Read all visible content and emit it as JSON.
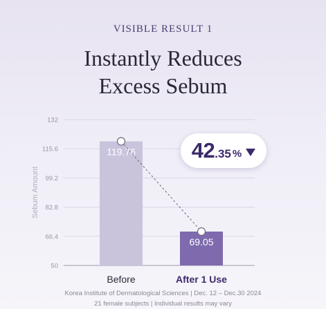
{
  "header": {
    "eyebrow": "VISIBLE RESULT 1",
    "title_line1": "Instantly Reduces",
    "title_line2": "Excess Sebum"
  },
  "badge": {
    "whole": "42",
    "decimal": ".35",
    "percent": "%",
    "direction": "down"
  },
  "chart_data": {
    "type": "bar",
    "categories": [
      "Before",
      "After 1 Use"
    ],
    "values": [
      119.76,
      69.05
    ],
    "value_labels": [
      "119.76",
      "69.05"
    ],
    "ylabel": "Sebum Amount",
    "ylim": [
      50,
      132
    ],
    "yticks": [
      "132",
      "115.6",
      "99.2",
      "82.8",
      "66.4",
      "50"
    ],
    "grid": true,
    "connector": "dashed",
    "colors": {
      "before": "#c9c4dc",
      "after": "#7e6aad",
      "text": "#2b2738",
      "after_label": "#3c2a6a"
    }
  },
  "footer": {
    "line1": "Korea Institute of Dermatological Sciences | Dec. 12 – Dec.30 2024",
    "line2": "21 female subjects | Individual results may vary"
  }
}
